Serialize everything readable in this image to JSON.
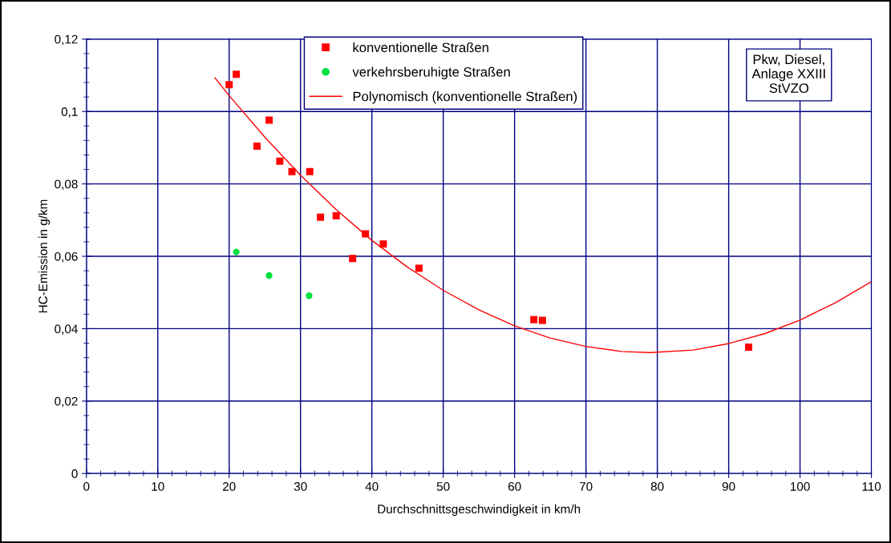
{
  "chart_data": {
    "type": "scatter",
    "xlabel": "Durchschnittsgeschwindigkeit in km/h",
    "ylabel": "HC-Emission in g/km",
    "annotations": [
      "Pkw, Diesel,\nAnlage XXIII\nStVZO"
    ],
    "xlim": [
      0,
      110
    ],
    "xticks": [
      0,
      10,
      20,
      30,
      40,
      50,
      60,
      70,
      80,
      90,
      100,
      110
    ],
    "ylim": [
      0,
      0.12
    ],
    "yticks": [
      0,
      {
        "value": 0.02,
        "label": "0,02"
      },
      {
        "value": 0.04,
        "label": "0,04"
      },
      {
        "value": 0.06,
        "label": "0,06"
      },
      {
        "value": 0.08,
        "label": "0,08"
      },
      {
        "value": 0.1,
        "label": "0,1"
      },
      {
        "value": 0.12,
        "label": "0,12"
      }
    ],
    "grid": true,
    "legend": "top",
    "series": [
      {
        "name": "konventionelle Straßen",
        "color": "#ff0000",
        "marker": "square",
        "x": [
          20.0,
          21.0,
          25.6,
          23.9,
          27.1,
          28.8,
          31.3,
          32.8,
          35.0,
          37.3,
          39.1,
          41.6,
          46.6,
          62.7,
          63.9,
          92.8
        ],
        "values": [
          0.1074,
          0.1103,
          0.0976,
          0.0904,
          0.0863,
          0.0834,
          0.0834,
          0.0708,
          0.0712,
          0.0594,
          0.0662,
          0.0634,
          0.0567,
          0.0425,
          0.0423,
          0.0349
        ]
      },
      {
        "name": "verkehrsberuhigte Straßen",
        "color": "#00e040",
        "marker": "circle",
        "x": [
          21.0,
          25.6,
          31.2
        ],
        "values": [
          0.0612,
          0.0547,
          0.0491
        ]
      },
      {
        "name": "Polynomisch (konventionelle Straßen)",
        "type": "line",
        "color": "#ff0000",
        "marker": "none",
        "x": [
          18,
          20,
          25,
          30,
          35,
          40,
          45,
          50,
          55,
          60,
          65,
          70,
          75,
          79,
          85,
          90,
          95,
          100,
          105,
          110
        ],
        "values": [
          0.1093,
          0.1044,
          0.0929,
          0.0824,
          0.0729,
          0.0644,
          0.057,
          0.0506,
          0.0452,
          0.0408,
          0.0374,
          0.0351,
          0.0337,
          0.0334,
          0.0341,
          0.0359,
          0.0386,
          0.0424,
          0.0472,
          0.053
        ]
      }
    ]
  }
}
